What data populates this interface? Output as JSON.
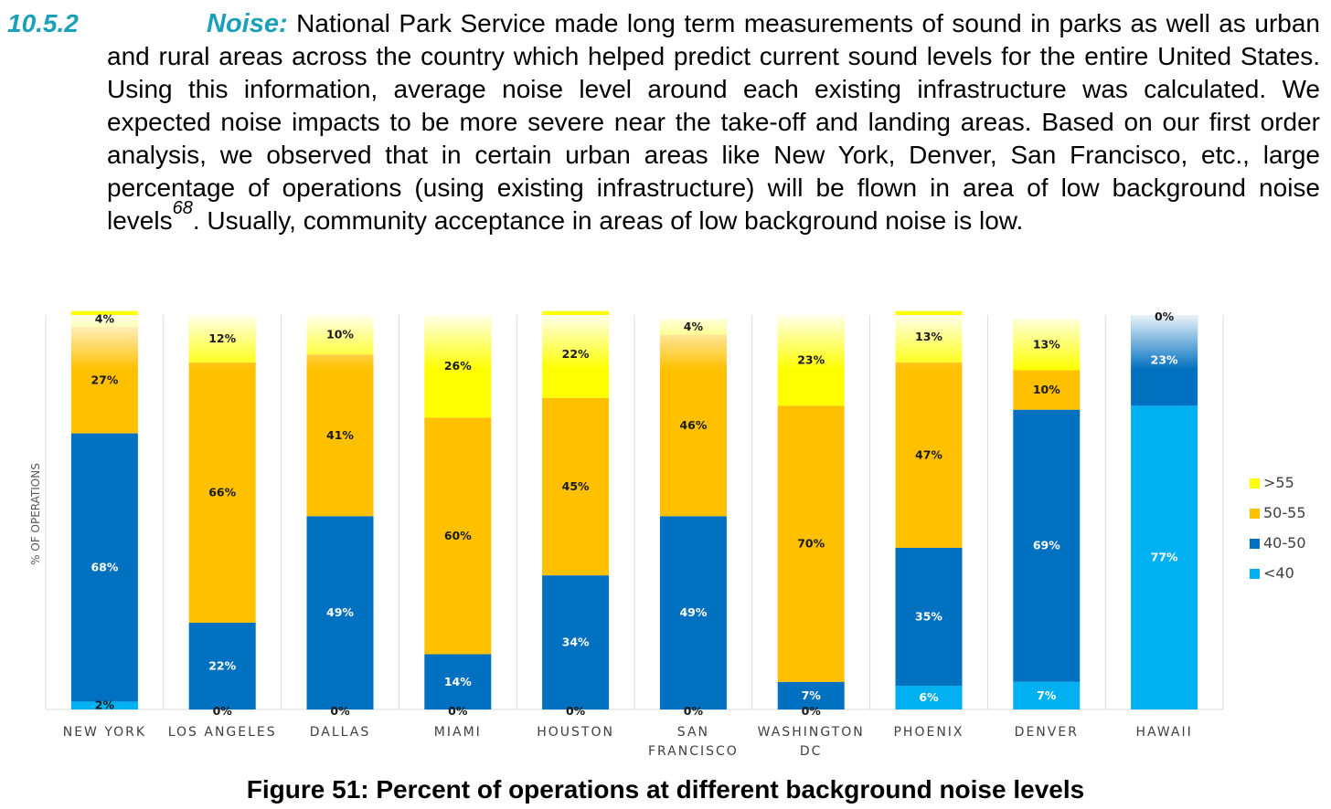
{
  "section": {
    "number": "10.5.2",
    "title": "Noise:",
    "text_before": "National Park Service made long term measurements of sound in parks as well as urban and rural areas across the country which helped predict current sound levels for the entire United States. Using this information, average noise level around each existing infrastructure was calculated. We expected noise impacts to be more severe near the take-off and landing areas. Based on our first order analysis, we observed that in certain urban areas like New York, Denver, San Francisco, etc., large percentage of operations (using existing infrastructure) will be flown in area of low background noise levels",
    "footnote": "68",
    "text_after": ". Usually, community acceptance in areas of low background noise is low."
  },
  "caption": "Figure 51: Percent of operations at different background noise levels",
  "chart_data": {
    "type": "bar",
    "stacked": true,
    "ylabel": "% OF OPERATIONS",
    "xlabel": "",
    "ylim": [
      0,
      100
    ],
    "grid": true,
    "legend_position": "right",
    "categories": [
      "NEW YORK",
      "LOS ANGELES",
      "DALLAS",
      "MIAMI",
      "HOUSTON",
      "SAN FRANCISCO",
      "WASHINGTON DC",
      "PHOENIX",
      "DENVER",
      "HAWAII"
    ],
    "category_lines": [
      [
        "NEW YORK"
      ],
      [
        "LOS ANGELES"
      ],
      [
        "DALLAS"
      ],
      [
        "MIAMI"
      ],
      [
        "HOUSTON"
      ],
      [
        "SAN",
        "FRANCISCO"
      ],
      [
        "WASHINGTON",
        "DC"
      ],
      [
        "PHOENIX"
      ],
      [
        "DENVER"
      ],
      [
        "HAWAII"
      ]
    ],
    "series": [
      {
        "name": "<40",
        "color": "#00b0f0",
        "values": [
          2,
          0,
          0,
          0,
          0,
          0,
          0,
          6,
          7,
          77
        ],
        "labels": [
          "2%",
          "0%",
          "0%",
          "0%",
          "0%",
          "0%",
          "0%",
          "6%",
          "7%",
          "77%"
        ]
      },
      {
        "name": "40-50",
        "color": "#0070c0",
        "values": [
          68,
          22,
          49,
          14,
          34,
          49,
          7,
          35,
          69,
          23
        ],
        "labels": [
          "68%",
          "22%",
          "49%",
          "14%",
          "34%",
          "49%",
          "7%",
          "35%",
          "69%",
          "23%"
        ]
      },
      {
        "name": "50-55",
        "color": "#ffc000",
        "values": [
          27,
          66,
          41,
          60,
          45,
          46,
          70,
          47,
          10,
          0
        ],
        "labels": [
          "27%",
          "66%",
          "41%",
          "60%",
          "45%",
          "46%",
          "70%",
          "47%",
          "10%",
          "0%"
        ]
      },
      {
        "name": ">55",
        "color": "#ffff00",
        "values": [
          4,
          12,
          10,
          26,
          22,
          4,
          23,
          13,
          13,
          0
        ],
        "labels": [
          "4%",
          "12%",
          "10%",
          "26%",
          "22%",
          "4%",
          "23%",
          "13%",
          "13%",
          ""
        ]
      }
    ],
    "legend_order": [
      ">55",
      "50-55",
      "40-50",
      "<40"
    ]
  }
}
